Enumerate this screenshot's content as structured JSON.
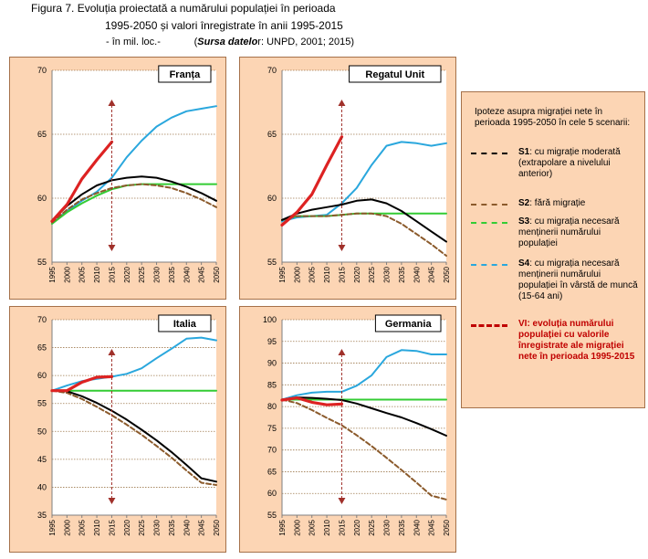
{
  "header": {
    "line1": "Figura 7.  Evoluția proiectată a numărului populației în perioada",
    "line2": "1995-2050  și valori înregistrate în anii 1995-2015",
    "line3_prefix": "- în mil. loc.-",
    "line3_source_label": "Sursa datelo",
    "line3_source_rest": "r: UNPD, 2001; 2015)",
    "line3_paren": "("
  },
  "legend": {
    "title": "Ipoteze asupra migrației nete în perioada 1995-2050  în cele 5 scenarii:",
    "items": [
      {
        "key": "S1",
        "code": "S1",
        "text": ": cu migrație moderată (extrapolare a nivelului anterior)",
        "color": "#000000",
        "dash": "dashed"
      },
      {
        "key": "S2",
        "code": "S2",
        "text": ": fără migrație",
        "color": "#8B5A2B",
        "dash": "dashed"
      },
      {
        "key": "S3",
        "code": "S3",
        "text": ": cu migrația necesară menținerii numărului populației",
        "color": "#33CC33",
        "dash": "dashed"
      },
      {
        "key": "S4",
        "code": "S4",
        "text": ": cu migrația necesară menținerii numărului  populației în  vârstă de muncă (15-64 ani)",
        "color": "#2AA7DD",
        "dash": "dashed"
      },
      {
        "key": "VI",
        "code": "VI",
        "text": ":  evoluția numărului populației cu valorile  înregistrate ale migrației nete în perioada 1995-2015",
        "color": "#C00000",
        "dash": "dashed"
      }
    ]
  },
  "chart_data": [
    {
      "type": "line",
      "title": "Franța",
      "x": [
        1995,
        2000,
        2005,
        2010,
        2015,
        2020,
        2025,
        2030,
        2035,
        2040,
        2045,
        2050
      ],
      "ylim": [
        55,
        70
      ],
      "yticks": [
        55,
        60,
        65,
        70
      ],
      "grid": "horizontal dotted",
      "arrow_x": 2015,
      "series": [
        {
          "key": "S1",
          "values": [
            58.2,
            59.4,
            60.3,
            61.0,
            61.4,
            61.6,
            61.7,
            61.6,
            61.3,
            60.9,
            60.4,
            59.8
          ],
          "color": "#000000"
        },
        {
          "key": "S2",
          "values": [
            58.1,
            59.1,
            59.9,
            60.4,
            60.8,
            61.0,
            61.1,
            61.0,
            60.8,
            60.4,
            59.9,
            59.3
          ],
          "color": "#8B5A2B"
        },
        {
          "key": "S3",
          "values": [
            58.0,
            58.9,
            59.6,
            60.2,
            60.7,
            61.0,
            61.1,
            61.1,
            61.1,
            61.1,
            61.1,
            61.1
          ],
          "color": "#33CC33"
        },
        {
          "key": "S4",
          "values": [
            58.0,
            59.0,
            59.8,
            60.5,
            61.6,
            63.2,
            64.5,
            65.6,
            66.3,
            66.8,
            67.0,
            67.2
          ],
          "color": "#2AA7DD"
        },
        {
          "key": "VI",
          "values": [
            58.2,
            59.5,
            61.5,
            63.0,
            64.4,
            null,
            null,
            null,
            null,
            null,
            null,
            null
          ],
          "color": "#DD2222"
        }
      ]
    },
    {
      "type": "line",
      "title": "Regatul Unit",
      "x": [
        1995,
        2000,
        2005,
        2010,
        2015,
        2020,
        2025,
        2030,
        2035,
        2040,
        2045,
        2050
      ],
      "ylim": [
        55,
        70
      ],
      "yticks": [
        55,
        60,
        65,
        70
      ],
      "grid": "horizontal dotted",
      "arrow_x": 2015,
      "series": [
        {
          "key": "S1",
          "values": [
            58.3,
            58.8,
            59.1,
            59.3,
            59.5,
            59.8,
            59.9,
            59.6,
            59.0,
            58.2,
            57.4,
            56.6
          ],
          "color": "#000000"
        },
        {
          "key": "S2",
          "values": [
            58.3,
            58.6,
            58.6,
            58.6,
            58.7,
            58.8,
            58.8,
            58.6,
            58.0,
            57.2,
            56.4,
            55.5
          ],
          "color": "#8B5A2B"
        },
        {
          "key": "S3",
          "values": [
            58.3,
            58.6,
            58.6,
            58.6,
            58.7,
            58.8,
            58.8,
            58.8,
            58.8,
            58.8,
            58.8,
            58.8
          ],
          "color": "#33CC33"
        },
        {
          "key": "S4",
          "values": [
            58.2,
            58.5,
            58.6,
            58.7,
            59.6,
            60.8,
            62.6,
            64.1,
            64.4,
            64.3,
            64.1,
            64.3
          ],
          "color": "#2AA7DD"
        },
        {
          "key": "VI",
          "values": [
            57.9,
            58.9,
            60.3,
            62.6,
            64.8,
            null,
            null,
            null,
            null,
            null,
            null,
            null
          ],
          "color": "#DD2222"
        }
      ]
    },
    {
      "type": "line",
      "title": "Italia",
      "x": [
        1995,
        2000,
        2005,
        2010,
        2015,
        2020,
        2025,
        2030,
        2035,
        2040,
        2045,
        2050
      ],
      "ylim": [
        35,
        70
      ],
      "yticks": [
        35,
        40,
        45,
        50,
        55,
        60,
        65,
        70
      ],
      "grid": "horizontal dotted",
      "arrow_x": 2015,
      "series": [
        {
          "key": "S1",
          "values": [
            57.3,
            57.2,
            56.3,
            55.1,
            53.7,
            52.1,
            50.3,
            48.4,
            46.3,
            44.0,
            41.6,
            41.0
          ],
          "color": "#000000"
        },
        {
          "key": "S2",
          "values": [
            57.3,
            56.9,
            55.8,
            54.4,
            52.9,
            51.2,
            49.4,
            47.4,
            45.3,
            43.0,
            40.8,
            40.4
          ],
          "color": "#8B5A2B"
        },
        {
          "key": "S3",
          "values": [
            57.3,
            57.3,
            57.3,
            57.3,
            57.3,
            57.3,
            57.3,
            57.3,
            57.3,
            57.3,
            57.3,
            57.3
          ],
          "color": "#33CC33"
        },
        {
          "key": "S4",
          "values": [
            57.3,
            58.2,
            59.0,
            59.4,
            59.8,
            60.3,
            61.3,
            63.1,
            64.8,
            66.6,
            66.8,
            66.3
          ],
          "color": "#2AA7DD"
        },
        {
          "key": "VI",
          "values": [
            57.3,
            57.3,
            58.8,
            59.7,
            59.8,
            null,
            null,
            null,
            null,
            null,
            null,
            null
          ],
          "color": "#DD2222"
        }
      ]
    },
    {
      "type": "line",
      "title": "Germania",
      "x": [
        1995,
        2000,
        2005,
        2010,
        2015,
        2020,
        2025,
        2030,
        2035,
        2040,
        2045,
        2050
      ],
      "ylim": [
        55,
        100
      ],
      "yticks": [
        55,
        60,
        65,
        70,
        75,
        80,
        85,
        90,
        95,
        100
      ],
      "grid": "horizontal dotted",
      "arrow_x": 2015,
      "series": [
        {
          "key": "S1",
          "values": [
            81.6,
            82.1,
            82.0,
            81.8,
            81.5,
            80.7,
            79.6,
            78.5,
            77.5,
            76.2,
            74.8,
            73.3
          ],
          "color": "#000000"
        },
        {
          "key": "S2",
          "values": [
            81.6,
            80.8,
            79.2,
            77.4,
            75.7,
            73.4,
            70.9,
            68.2,
            65.4,
            62.5,
            59.5,
            58.6
          ],
          "color": "#8B5A2B"
        },
        {
          "key": "S3",
          "values": [
            81.6,
            81.6,
            81.6,
            81.6,
            81.6,
            81.6,
            81.6,
            81.6,
            81.6,
            81.6,
            81.6,
            81.6
          ],
          "color": "#33CC33"
        },
        {
          "key": "S4",
          "values": [
            81.6,
            82.6,
            83.2,
            83.4,
            83.4,
            84.8,
            87.2,
            91.4,
            93.0,
            92.8,
            92.0,
            92.0
          ],
          "color": "#2AA7DD"
        },
        {
          "key": "VI",
          "values": [
            81.5,
            82.0,
            81.0,
            80.4,
            80.6,
            null,
            null,
            null,
            null,
            null,
            null,
            null
          ],
          "color": "#DD2222"
        }
      ]
    }
  ]
}
